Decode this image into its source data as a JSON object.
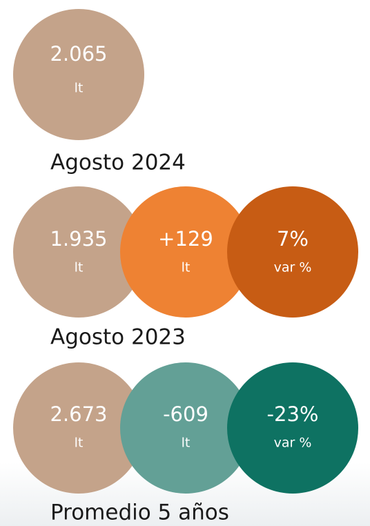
{
  "summary": {
    "value": "2.065",
    "unit": "lt",
    "label": "Agosto 2024"
  },
  "comparisons": [
    {
      "label": "Agosto 2023",
      "items": [
        {
          "value": "1.935",
          "unit": "lt"
        },
        {
          "value": "+129",
          "unit": "lt"
        },
        {
          "value": "7%",
          "unit": "var %"
        }
      ]
    },
    {
      "label": "Promedio 5 años",
      "items": [
        {
          "value": "2.673",
          "unit": "lt"
        },
        {
          "value": "-609",
          "unit": "lt"
        },
        {
          "value": "-23%",
          "unit": "var %"
        }
      ]
    }
  ]
}
